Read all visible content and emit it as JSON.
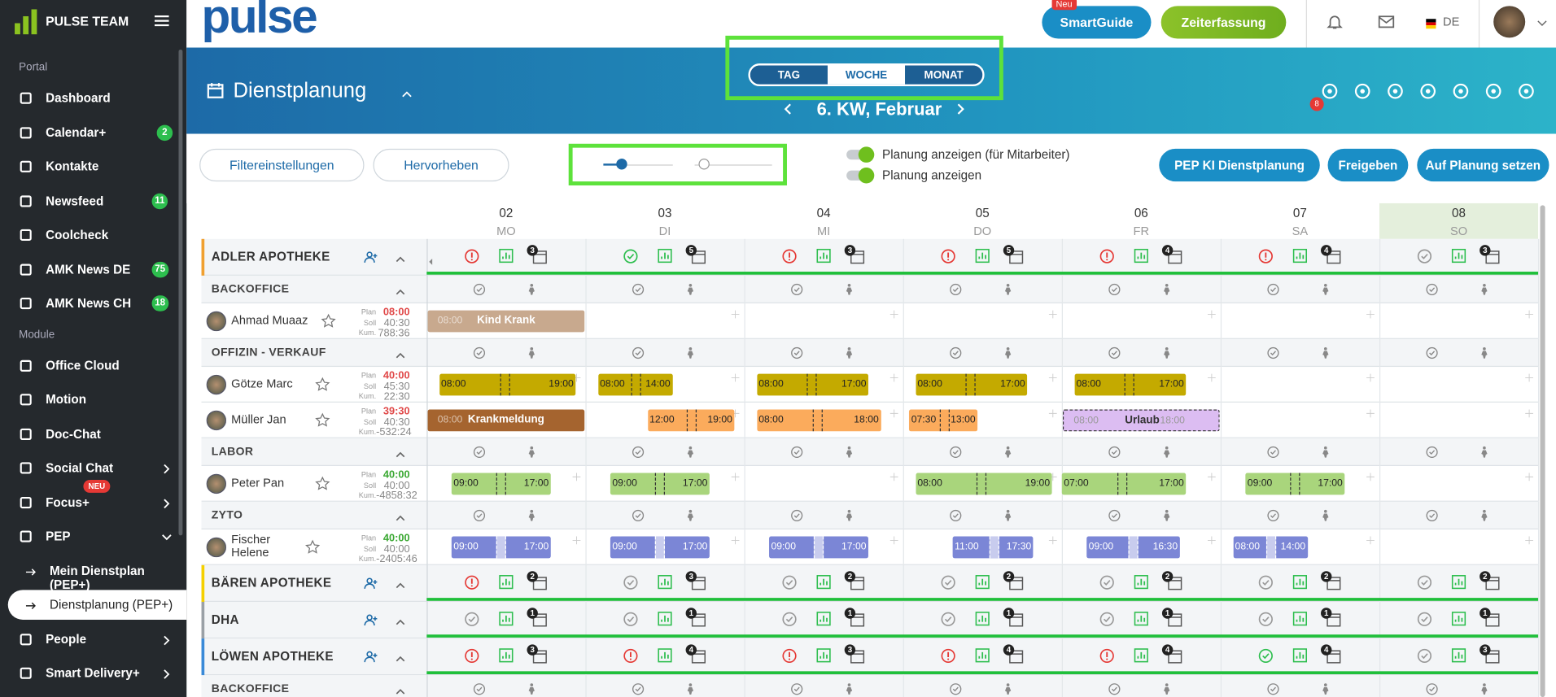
{
  "sidebar": {
    "brand": "PULSE TEAM",
    "sections": [
      {
        "title": "Portal",
        "items": [
          {
            "label": "Dashboard"
          },
          {
            "label": "Calendar+",
            "badge": "2"
          },
          {
            "label": "Kontakte"
          },
          {
            "label": "Newsfeed",
            "badge": "11"
          },
          {
            "label": "Coolcheck"
          },
          {
            "label": "AMK News DE",
            "badge": "75"
          },
          {
            "label": "AMK News CH",
            "badge": "18"
          }
        ]
      },
      {
        "title": "Module",
        "items": [
          {
            "label": "Office Cloud"
          },
          {
            "label": "Motion"
          },
          {
            "label": "Doc-Chat"
          },
          {
            "label": "Social Chat"
          },
          {
            "label": "Focus+",
            "tag": "NEU"
          },
          {
            "label": "PEP"
          },
          {
            "label": "Mein Dienstplan (PEP+)",
            "sub": true
          },
          {
            "label": "Dienstplanung (PEP+)",
            "sub": true,
            "active": true
          },
          {
            "label": "People"
          },
          {
            "label": "Smart Delivery+"
          }
        ]
      }
    ]
  },
  "header": {
    "logo": "pulse",
    "guide": "SmartGuide",
    "guide_tag": "Neu",
    "time": "Zeiterfassung",
    "lang": "DE"
  },
  "page": {
    "title": "Dienstplanung",
    "views": [
      "TAG",
      "WOCHE",
      "MONAT"
    ],
    "active_view": 1,
    "week": "6. KW, Februar",
    "badge": "8"
  },
  "toolbar": {
    "filter": "Filtereinstellungen",
    "highlight": "Hervorheben",
    "toggles": [
      "Planung anzeigen (für Mitarbeiter)",
      "Planung anzeigen"
    ],
    "buttons": [
      "PEP KI Dienstplanung",
      "Freigeben",
      "Auf Planung setzen"
    ]
  },
  "days": [
    {
      "num": "02",
      "name": "MO"
    },
    {
      "num": "03",
      "name": "DI"
    },
    {
      "num": "04",
      "name": "MI"
    },
    {
      "num": "05",
      "name": "DO"
    },
    {
      "num": "06",
      "name": "FR"
    },
    {
      "num": "07",
      "name": "SA"
    },
    {
      "num": "08",
      "name": "SO"
    }
  ],
  "labels": {
    "plan": "Plan",
    "soll": "Soll",
    "kum": "Kum."
  },
  "rows": [
    {
      "kind": "pharmacy",
      "name": "ADLER APOTHEKE",
      "accent": "#f0a030",
      "status": [
        "alert",
        "ok",
        "alert",
        "alert",
        "alert",
        "alert",
        "none"
      ],
      "counts": [
        "3",
        "5",
        "3",
        "5",
        "4",
        "4",
        "3"
      ]
    },
    {
      "kind": "section",
      "name": "BACKOFFICE"
    },
    {
      "kind": "employee",
      "name": "Ahmad Muaaz",
      "plan": "08:00",
      "soll": "40:30",
      "kum": "788:36",
      "color": "#c8a98e",
      "shifts": [
        {
          "label": "Kind Krank",
          "start": "08:00"
        },
        null,
        null,
        null,
        null,
        null,
        null
      ]
    },
    {
      "kind": "section",
      "name": "OFFIZIN - VERKAUF"
    },
    {
      "kind": "employee",
      "name": "Götze Marc",
      "plan": "40:00",
      "soll": "45:30",
      "kum": "22:30",
      "color": "#c4aa00",
      "shifts": [
        {
          "start": "08:00",
          "end": "19:00"
        },
        {
          "start": "08:00",
          "end": "14:00"
        },
        {
          "start": "08:00",
          "end": "17:00"
        },
        {
          "start": "08:00",
          "end": "17:00"
        },
        {
          "start": "08:00",
          "end": "17:00"
        },
        null,
        null
      ]
    },
    {
      "kind": "employee",
      "name": "Müller Jan",
      "plan": "39:30",
      "soll": "40:30",
      "kum": "-532:24",
      "color": "#fbab5c",
      "shifts": [
        {
          "label": "Krankmeldung",
          "start": "08:00",
          "color": "#a5642f"
        },
        {
          "start": "12:00",
          "end": "19:00"
        },
        {
          "start": "08:00",
          "end": "18:00"
        },
        {
          "start": "07:30",
          "end": "13:00"
        },
        {
          "label": "Urlaub",
          "start": "08:00",
          "end": "18:00",
          "color": "#dcbdf2"
        },
        null,
        null
      ]
    },
    {
      "kind": "section",
      "name": "LABOR"
    },
    {
      "kind": "employee",
      "name": "Peter Pan",
      "plan": "40:00",
      "soll": "40:00",
      "kum": "-4858:32",
      "color": "#a9d57c",
      "shifts": [
        {
          "start": "09:00",
          "end": "17:00"
        },
        {
          "start": "09:00",
          "end": "17:00"
        },
        null,
        {
          "start": "08:00",
          "end": "19:00"
        },
        {
          "start": "07:00",
          "end": "17:00"
        },
        {
          "start": "09:00",
          "end": "17:00"
        },
        null
      ]
    },
    {
      "kind": "section",
      "name": "ZYTO"
    },
    {
      "kind": "employee",
      "name": "Fischer Helene",
      "plan": "40:00",
      "soll": "40:00",
      "kum": "-2405:46",
      "color": "#7b86d6",
      "shifts": [
        {
          "start": "09:00",
          "end": "17:00"
        },
        {
          "start": "09:00",
          "end": "17:00"
        },
        {
          "start": "09:00",
          "end": "17:00"
        },
        {
          "start": "11:00",
          "end": "17:30"
        },
        {
          "start": "09:00",
          "end": "16:30"
        },
        {
          "start": "08:00",
          "end": "14:00"
        },
        null
      ]
    },
    {
      "kind": "pharmacy",
      "name": "BÄREN APOTHEKE",
      "accent": "#f5d000",
      "status": [
        "alert",
        "none",
        "none",
        "none",
        "none",
        "none",
        "none"
      ],
      "counts": [
        "2",
        "3",
        "2",
        "2",
        "2",
        "2",
        "2"
      ]
    },
    {
      "kind": "pharmacy",
      "name": "DHA",
      "accent": "#9aa0a6",
      "status": [
        "none",
        "none",
        "none",
        "none",
        "none",
        "none",
        "none"
      ],
      "counts": [
        "1",
        "1",
        "1",
        "1",
        "1",
        "1",
        "1"
      ]
    },
    {
      "kind": "pharmacy",
      "name": "LÖWEN APOTHEKE",
      "accent": "#3a8ad8",
      "status": [
        "alert",
        "alert",
        "alert",
        "alert",
        "alert",
        "ok",
        "none"
      ],
      "counts": [
        "3",
        "4",
        "3",
        "4",
        "4",
        "4",
        "3"
      ]
    },
    {
      "kind": "section",
      "name": "BACKOFFICE"
    }
  ]
}
